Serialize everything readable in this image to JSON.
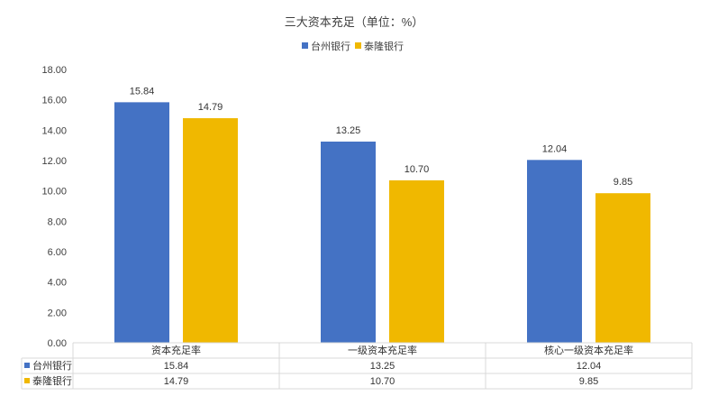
{
  "chart_data": {
    "type": "bar",
    "title": "三大资本充足（单位：%）",
    "categories": [
      "资本充足率",
      "一级资本充足率",
      "核心一级资本充足率"
    ],
    "series": [
      {
        "name": "台州银行",
        "values": [
          15.84,
          13.25,
          12.04
        ],
        "value_labels": [
          "15.84",
          "13.25",
          "12.04"
        ],
        "color": "#4472C4"
      },
      {
        "name": "泰隆银行",
        "values": [
          14.79,
          10.7,
          9.85
        ],
        "value_labels": [
          "14.79",
          "10.70",
          "9.85"
        ],
        "color": "#F0B800"
      }
    ],
    "y_ticks": [
      "0.00",
      "2.00",
      "4.00",
      "6.00",
      "8.00",
      "10.00",
      "12.00",
      "14.00",
      "16.00",
      "18.00"
    ],
    "ylim": [
      0,
      18
    ],
    "legend": "top",
    "grid": false,
    "data_table": true
  }
}
